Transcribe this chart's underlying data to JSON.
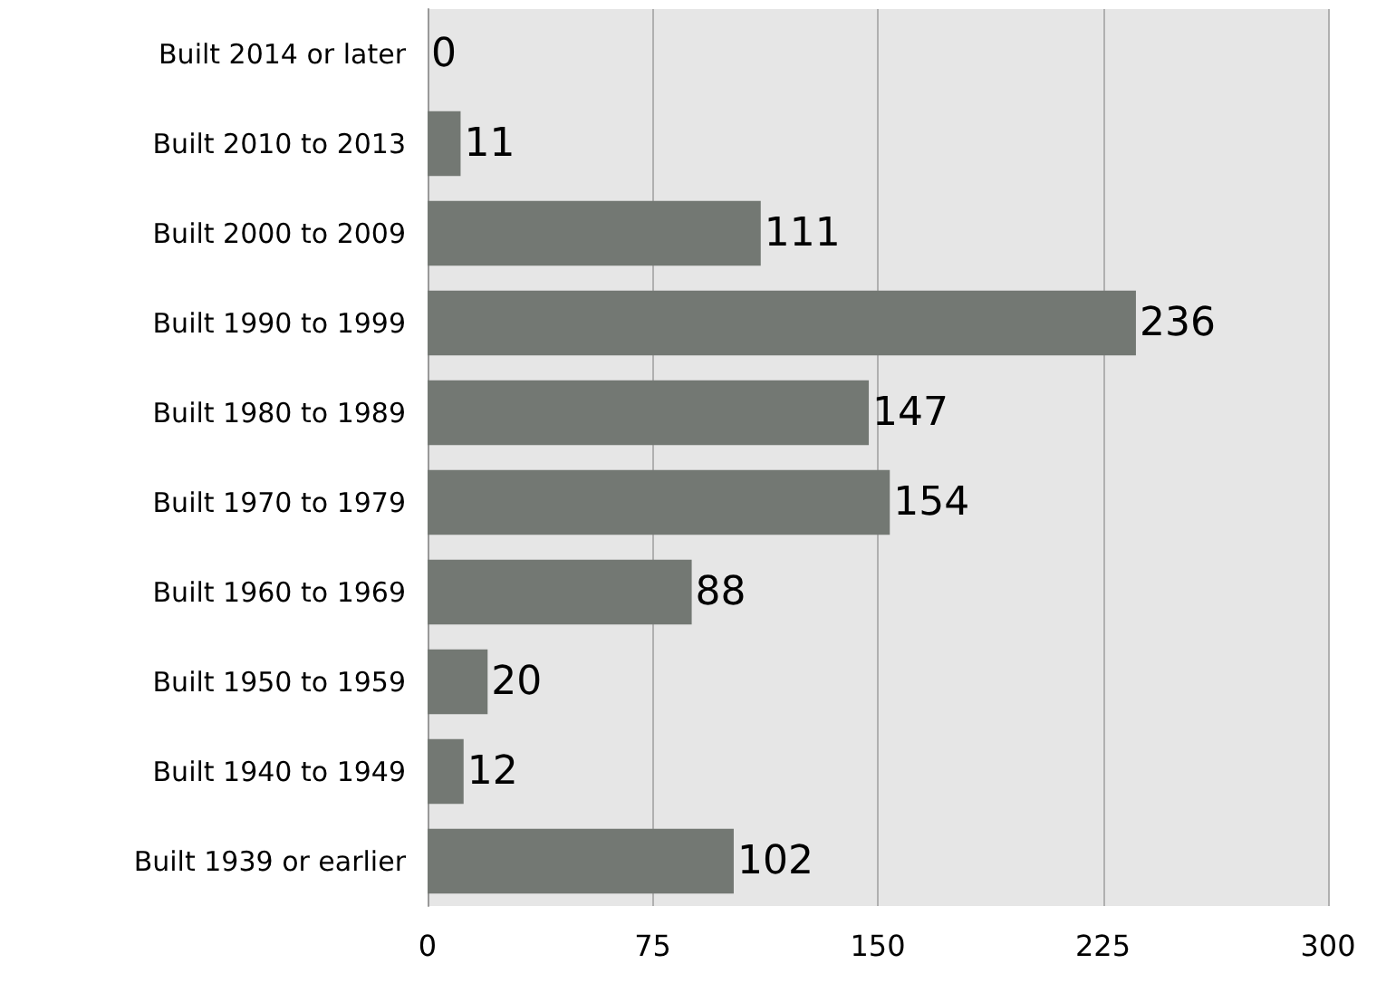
{
  "chart_data": {
    "type": "bar",
    "orientation": "horizontal",
    "categories": [
      "Built 2014 or later",
      "Built 2010 to 2013",
      "Built 2000 to 2009",
      "Built 1990 to 1999",
      "Built 1980 to 1989",
      "Built 1970 to 1979",
      "Built 1960 to 1969",
      "Built 1950 to 1959",
      "Built 1940 to 1949",
      "Built 1939 or earlier"
    ],
    "values": [
      0,
      11,
      111,
      236,
      147,
      154,
      88,
      20,
      12,
      102
    ],
    "color": "#737873",
    "xlim": [
      0,
      300
    ],
    "xticks": [
      0,
      75,
      150,
      225,
      300
    ],
    "grid": "x",
    "data_labels": true
  }
}
